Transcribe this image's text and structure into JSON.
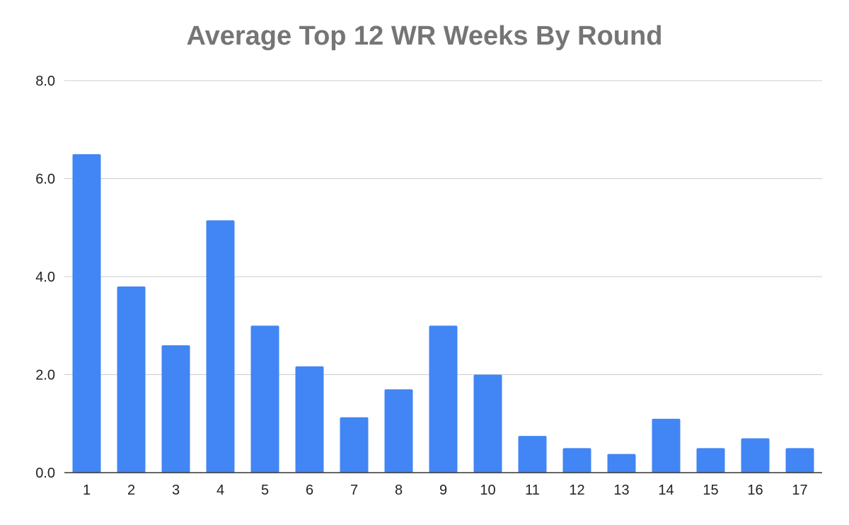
{
  "chart_data": {
    "type": "bar",
    "title": "Average Top 12 WR Weeks By Round",
    "xlabel": "",
    "ylabel": "",
    "categories": [
      "1",
      "2",
      "3",
      "4",
      "5",
      "6",
      "7",
      "8",
      "9",
      "10",
      "11",
      "12",
      "13",
      "14",
      "15",
      "16",
      "17"
    ],
    "values": [
      6.5,
      3.8,
      2.6,
      5.15,
      3.0,
      2.17,
      1.13,
      1.7,
      3.0,
      2.0,
      0.75,
      0.5,
      0.38,
      1.1,
      0.5,
      0.7,
      0.5
    ],
    "ylim": [
      0,
      8
    ],
    "yticks": [
      "0.0",
      "2.0",
      "4.0",
      "6.0",
      "8.0"
    ],
    "grid": true,
    "legend": "none",
    "bar_color": "#4285F4",
    "gridline_color": "#cccccc",
    "title_color": "#757575"
  }
}
